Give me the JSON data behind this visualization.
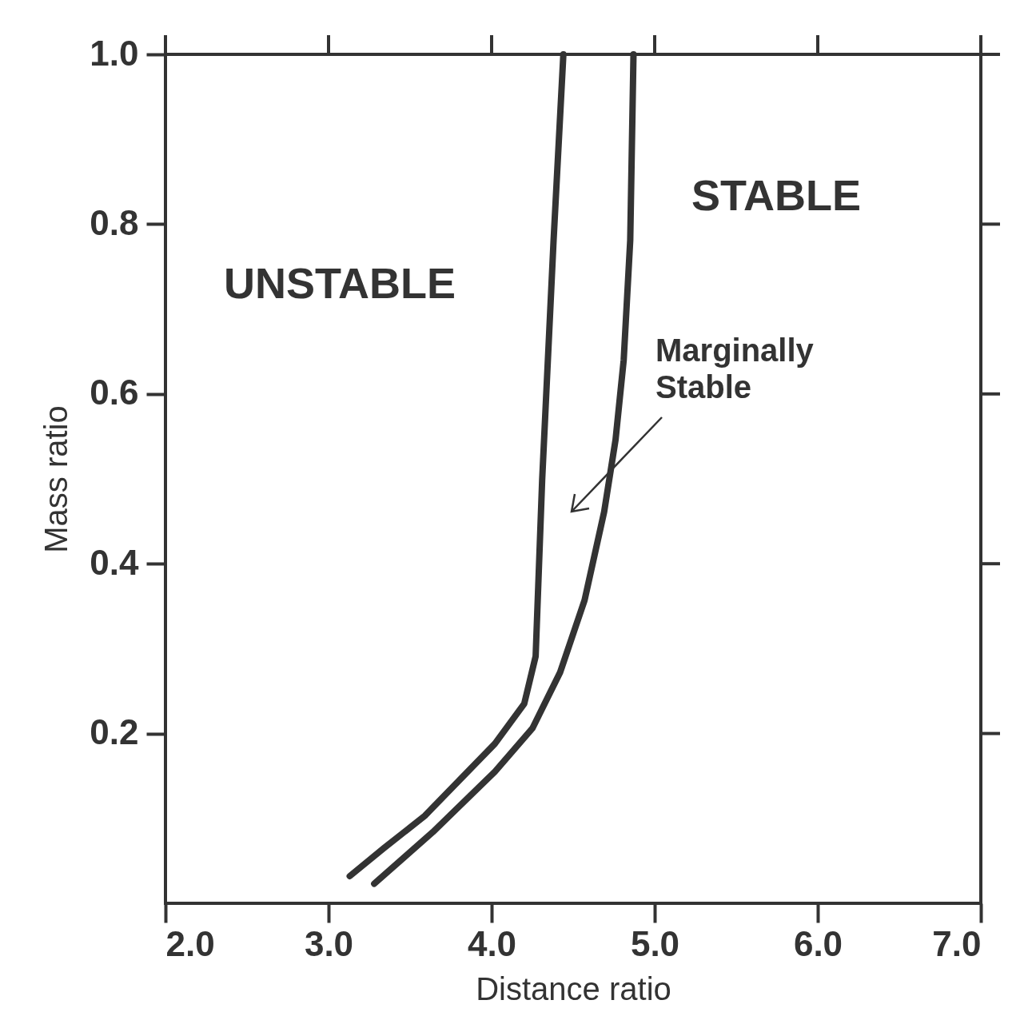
{
  "chart_data": {
    "type": "line",
    "xlabel": "Distance ratio",
    "ylabel": "Mass ratio",
    "xlim": [
      2.0,
      7.0
    ],
    "xticks": [
      {
        "value": 2,
        "label": "2.0"
      },
      {
        "value": 3,
        "label": "3.0"
      },
      {
        "value": 4,
        "label": "4.0"
      },
      {
        "value": 5,
        "label": "5.0"
      },
      {
        "value": 6,
        "label": "6.0"
      },
      {
        "value": 7,
        "label": "7.0"
      }
    ],
    "ylim": [
      0,
      1.0
    ],
    "yticks": [
      {
        "value": 0.2,
        "label": "0.2"
      },
      {
        "value": 0.4,
        "label": "0.4"
      },
      {
        "value": 0.6,
        "label": "0.6"
      },
      {
        "value": 0.8,
        "label": "0.8"
      },
      {
        "value": 1.0,
        "label": "1.0"
      }
    ],
    "grid": false,
    "legend": false,
    "marker": "none",
    "line_style": "solid",
    "series": [
      {
        "color": "#333333",
        "x": [
          3.13,
          3.34,
          3.59,
          4.02,
          4.2,
          4.27,
          4.31,
          4.38,
          4.44
        ],
        "values": [
          0.032,
          0.065,
          0.103,
          0.188,
          0.235,
          0.291,
          0.499,
          0.781,
          1.0
        ]
      },
      {
        "color": "#333333",
        "x": [
          3.28,
          3.64,
          4.02,
          4.25,
          4.42,
          4.57,
          4.69,
          4.76,
          4.81,
          4.85,
          4.87
        ],
        "values": [
          0.023,
          0.084,
          0.155,
          0.206,
          0.272,
          0.357,
          0.461,
          0.546,
          0.64,
          0.781,
          1.0
        ]
      }
    ],
    "annotations": [
      "UNSTABLE",
      "STABLE",
      "Marginally\nStable"
    ]
  }
}
